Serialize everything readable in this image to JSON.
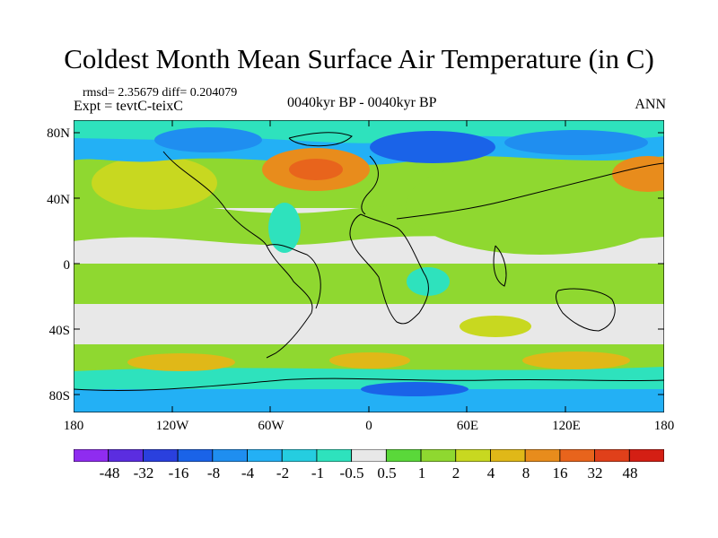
{
  "title": "Coldest Month Mean Surface Air Temperature (in C)",
  "stats_line": "rmsd= 2.35679 diff= 0.204079",
  "experiment_line": "Expt = tevtC-teixC",
  "period": "0040kyr BP - 0040kyr BP",
  "season": "ANN",
  "lat_labels": [
    "80N",
    "40N",
    "0",
    "40S",
    "80S"
  ],
  "lon_labels": [
    "180",
    "120W",
    "60W",
    "0",
    "60E",
    "120E",
    "180"
  ],
  "colorbar": {
    "labels": [
      "-48",
      "-32",
      "-16",
      "-8",
      "-4",
      "-2",
      "-1",
      "-0.5",
      "0.5",
      "1",
      "2",
      "4",
      "8",
      "16",
      "32",
      "48"
    ],
    "colors": [
      "#8f2cf0",
      "#5b2de0",
      "#2a40de",
      "#1a63e8",
      "#1f8ef0",
      "#23b0f5",
      "#25cde0",
      "#2ee2bd",
      "#e8e8e8",
      "#5ad83a",
      "#8fd830",
      "#c8d820",
      "#e0b818",
      "#e88c1c",
      "#e8641c",
      "#e0401a",
      "#d41f14"
    ]
  }
}
